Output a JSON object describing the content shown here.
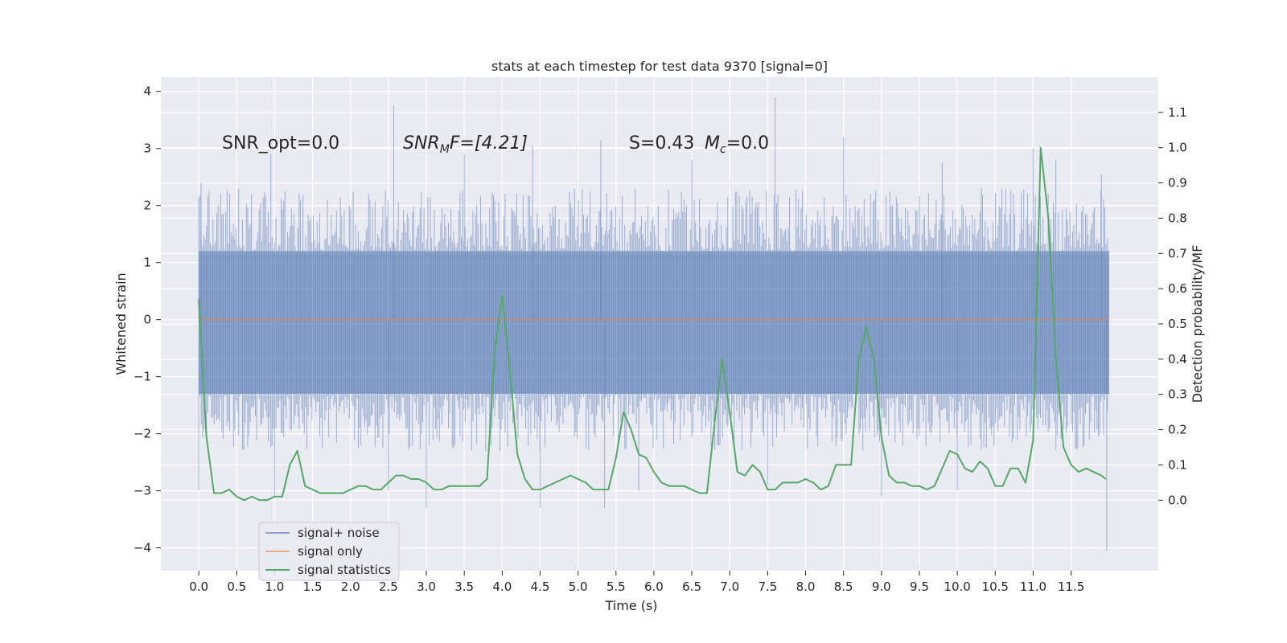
{
  "chart_data": {
    "type": "line",
    "title": "stats at each timestep for test data 9370 [signal=0]",
    "xlabel": "Time (s)",
    "ylabel_left": "Whitened strain",
    "ylabel_right": "Detection probability/MF",
    "xlim": [
      -0.5,
      12.65
    ],
    "ylim_left": [
      -4.4,
      4.25
    ],
    "ylim_right": [
      -0.2,
      1.2
    ],
    "x_ticks": [
      "0.0",
      "0.5",
      "1.0",
      "1.5",
      "2.0",
      "2.5",
      "3.0",
      "3.5",
      "4.0",
      "4.5",
      "5.0",
      "5.5",
      "6.0",
      "6.5",
      "7.0",
      "7.5",
      "8.0",
      "8.5",
      "9.0",
      "9.5",
      "10.0",
      "10.5",
      "11.0",
      "11.5"
    ],
    "y_ticks_left": [
      "4",
      "3",
      "2",
      "1",
      "0",
      "−1",
      "−2",
      "−3",
      "−4"
    ],
    "y_ticks_right": [
      "1.1",
      "1.0",
      "0.9",
      "0.8",
      "0.7",
      "0.6",
      "0.5",
      "0.4",
      "0.3",
      "0.2",
      "0.1",
      "0.0"
    ],
    "grid": true,
    "legend_position": "lower-left",
    "annotations": {
      "snr_opt": "SNR_opt=0.0",
      "snr_mf_base": "SNR",
      "snr_mf_sub": "M",
      "snr_mf_rest": "F=[4.21]",
      "s_value": "S=0.43",
      "mc_base": "M",
      "mc_sub": "c",
      "mc_rest": "=0.0"
    },
    "series": [
      {
        "name": "signal+ noise",
        "color": "#4c72b0",
        "x_range": [
          0.0,
          12.0
        ],
        "envelope": {
          "dense_low": -1.3,
          "dense_high": 1.2,
          "typical_low": -2.3,
          "typical_high": 2.3,
          "spikes": [
            [
              0.0,
              -3.0
            ],
            [
              0.03,
              2.4
            ],
            [
              0.95,
              2.9
            ],
            [
              1.0,
              -3.1
            ],
            [
              2.57,
              3.75
            ],
            [
              2.5,
              -3.0
            ],
            [
              3.0,
              -3.3
            ],
            [
              3.5,
              2.9
            ],
            [
              4.4,
              3.05
            ],
            [
              4.5,
              -3.3
            ],
            [
              5.3,
              3.15
            ],
            [
              5.35,
              -3.3
            ],
            [
              5.8,
              -3.0
            ],
            [
              6.5,
              2.8
            ],
            [
              7.6,
              3.9
            ],
            [
              7.5,
              -2.9
            ],
            [
              8.5,
              3.2
            ],
            [
              9.0,
              -3.1
            ],
            [
              9.8,
              2.75
            ],
            [
              10.0,
              -3.0
            ],
            [
              11.0,
              3.0
            ],
            [
              11.3,
              2.8
            ],
            [
              11.97,
              -4.05
            ],
            [
              11.9,
              2.55
            ]
          ]
        }
      },
      {
        "name": "signal only",
        "color": "#dd8452",
        "x_range": [
          0.0,
          12.0
        ],
        "value": 0.0
      },
      {
        "name": "signal statistics",
        "color": "#55a868",
        "x": [
          0.0,
          0.1,
          0.2,
          0.3,
          0.4,
          0.5,
          0.6,
          0.7,
          0.8,
          0.9,
          1.0,
          1.1,
          1.2,
          1.3,
          1.4,
          1.5,
          1.6,
          1.7,
          1.8,
          1.9,
          2.0,
          2.1,
          2.2,
          2.3,
          2.4,
          2.5,
          2.6,
          2.7,
          2.8,
          2.9,
          3.0,
          3.1,
          3.2,
          3.3,
          3.4,
          3.5,
          3.6,
          3.7,
          3.8,
          3.9,
          4.0,
          4.1,
          4.2,
          4.3,
          4.4,
          4.5,
          4.6,
          4.7,
          4.8,
          4.9,
          5.0,
          5.1,
          5.2,
          5.3,
          5.4,
          5.5,
          5.6,
          5.7,
          5.8,
          5.9,
          6.0,
          6.1,
          6.2,
          6.3,
          6.4,
          6.5,
          6.6,
          6.7,
          6.8,
          6.9,
          7.0,
          7.1,
          7.2,
          7.3,
          7.4,
          7.5,
          7.6,
          7.7,
          7.8,
          7.9,
          8.0,
          8.1,
          8.2,
          8.3,
          8.4,
          8.5,
          8.6,
          8.7,
          8.8,
          8.9,
          9.0,
          9.1,
          9.2,
          9.3,
          9.4,
          9.5,
          9.6,
          9.7,
          9.8,
          9.9,
          10.0,
          10.1,
          10.2,
          10.3,
          10.4,
          10.5,
          10.6,
          10.7,
          10.8,
          10.9,
          11.0,
          11.1,
          11.2,
          11.3,
          11.4,
          11.5,
          11.6,
          11.7,
          11.8,
          11.9,
          11.96
        ],
        "y": [
          0.57,
          0.18,
          0.02,
          0.02,
          0.03,
          0.01,
          0.0,
          0.01,
          0.0,
          0.0,
          0.01,
          0.01,
          0.1,
          0.14,
          0.04,
          0.03,
          0.02,
          0.02,
          0.02,
          0.02,
          0.03,
          0.04,
          0.04,
          0.03,
          0.03,
          0.05,
          0.07,
          0.07,
          0.06,
          0.06,
          0.05,
          0.03,
          0.03,
          0.04,
          0.04,
          0.04,
          0.04,
          0.04,
          0.06,
          0.42,
          0.58,
          0.37,
          0.13,
          0.06,
          0.03,
          0.03,
          0.04,
          0.05,
          0.06,
          0.07,
          0.06,
          0.05,
          0.03,
          0.03,
          0.03,
          0.12,
          0.25,
          0.2,
          0.13,
          0.12,
          0.08,
          0.05,
          0.04,
          0.04,
          0.04,
          0.03,
          0.02,
          0.02,
          0.22,
          0.4,
          0.25,
          0.08,
          0.07,
          0.1,
          0.08,
          0.03,
          0.03,
          0.05,
          0.05,
          0.05,
          0.06,
          0.05,
          0.03,
          0.04,
          0.1,
          0.1,
          0.1,
          0.4,
          0.49,
          0.4,
          0.18,
          0.07,
          0.05,
          0.05,
          0.04,
          0.04,
          0.03,
          0.04,
          0.09,
          0.14,
          0.13,
          0.09,
          0.08,
          0.11,
          0.09,
          0.04,
          0.04,
          0.09,
          0.09,
          0.05,
          0.17,
          1.0,
          0.8,
          0.4,
          0.15,
          0.1,
          0.08,
          0.09,
          0.08,
          0.07,
          0.06
        ]
      }
    ]
  }
}
